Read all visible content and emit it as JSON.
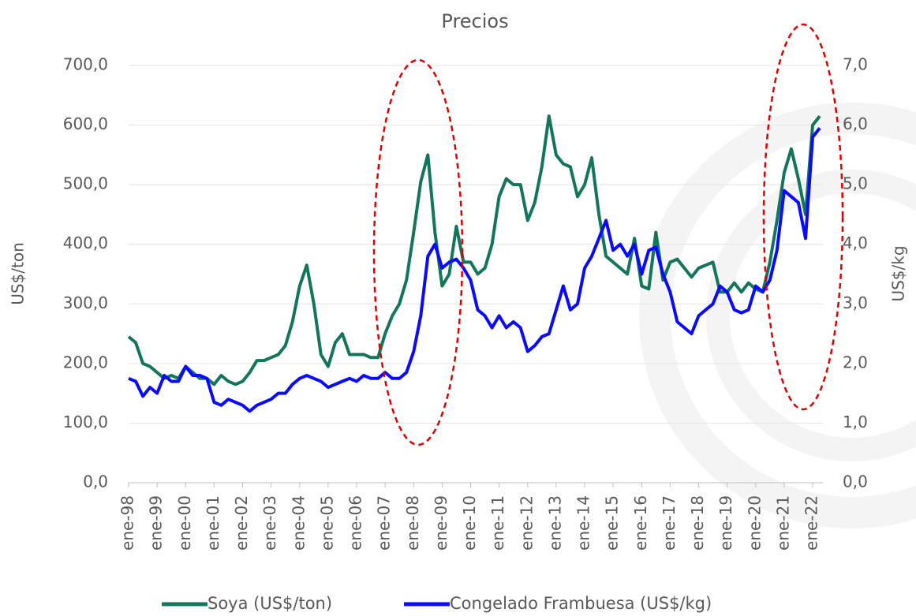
{
  "chart_data": {
    "type": "line",
    "title": "Precios",
    "y_label": "US$/ton",
    "y2_label": "US$/kg",
    "categories": [
      "ene-98",
      null,
      null,
      null,
      "ene-99",
      null,
      null,
      null,
      "ene-00",
      null,
      null,
      null,
      "ene-01",
      null,
      null,
      null,
      "ene-02",
      null,
      null,
      null,
      "ene-03",
      null,
      null,
      null,
      "ene-04",
      null,
      null,
      null,
      "ene-05",
      null,
      null,
      null,
      "ene-06",
      null,
      null,
      null,
      "ene-07",
      null,
      null,
      null,
      "ene-08",
      null,
      null,
      null,
      "ene-09",
      null,
      null,
      null,
      "ene-10",
      null,
      null,
      null,
      "ene-11",
      null,
      null,
      null,
      "ene-12",
      null,
      null,
      null,
      "ene-13",
      null,
      null,
      null,
      "ene-14",
      null,
      null,
      null,
      "ene-15",
      null,
      null,
      null,
      "ene-16",
      null,
      null,
      null,
      "ene-17",
      null,
      null,
      null,
      "ene-18",
      null,
      null,
      null,
      "ene-19",
      null,
      null,
      null,
      "ene-20",
      null,
      null,
      null,
      "ene-21",
      null,
      null,
      null,
      "ene-22",
      null
    ],
    "series": [
      {
        "name": "Soya (US$/ton)",
        "color": "#13765b",
        "axis": "y",
        "values": [
          245,
          235,
          200,
          195,
          185,
          175,
          180,
          175,
          195,
          185,
          175,
          175,
          165,
          180,
          170,
          165,
          170,
          185,
          205,
          205,
          210,
          215,
          230,
          270,
          330,
          365,
          300,
          215,
          195,
          235,
          250,
          215,
          215,
          215,
          210,
          210,
          250,
          280,
          300,
          340,
          420,
          505,
          550,
          420,
          330,
          350,
          430,
          370,
          370,
          350,
          360,
          400,
          480,
          510,
          500,
          500,
          440,
          470,
          530,
          615,
          550,
          535,
          530,
          480,
          500,
          545,
          450,
          380,
          370,
          360,
          350,
          410,
          330,
          325,
          420,
          340,
          370,
          375,
          360,
          345,
          360,
          365,
          370,
          320,
          320,
          335,
          320,
          335,
          325,
          320,
          370,
          440,
          520,
          560,
          510,
          450,
          600,
          615
        ]
      },
      {
        "name": "Congelado Frambuesa (US$/kg)",
        "color": "#0a0aff",
        "axis": "y2",
        "values": [
          1.75,
          1.7,
          1.45,
          1.6,
          1.5,
          1.8,
          1.7,
          1.7,
          1.95,
          1.8,
          1.8,
          1.75,
          1.35,
          1.3,
          1.4,
          1.35,
          1.3,
          1.2,
          1.3,
          1.35,
          1.4,
          1.5,
          1.5,
          1.65,
          1.75,
          1.8,
          1.75,
          1.7,
          1.6,
          1.65,
          1.7,
          1.75,
          1.7,
          1.8,
          1.75,
          1.75,
          1.85,
          1.75,
          1.75,
          1.85,
          2.2,
          2.8,
          3.8,
          4.0,
          3.6,
          3.7,
          3.75,
          3.6,
          3.4,
          2.9,
          2.8,
          2.6,
          2.8,
          2.6,
          2.7,
          2.6,
          2.2,
          2.3,
          2.45,
          2.5,
          2.9,
          3.3,
          2.9,
          3.0,
          3.6,
          3.8,
          4.1,
          4.4,
          3.9,
          4.0,
          3.8,
          4.0,
          3.5,
          3.9,
          3.95,
          3.5,
          3.2,
          2.7,
          2.6,
          2.5,
          2.8,
          2.9,
          3.0,
          3.3,
          3.2,
          2.9,
          2.85,
          2.9,
          3.3,
          3.2,
          3.4,
          3.9,
          4.9,
          4.8,
          4.7,
          4.1,
          5.8,
          5.95
        ]
      }
    ],
    "ylim": [
      0,
      700
    ],
    "yticks": [
      {
        "value": 0,
        "label": "0,0"
      },
      {
        "value": 100,
        "label": "100,0"
      },
      {
        "value": 200,
        "label": "200,0"
      },
      {
        "value": 300,
        "label": "300,0"
      },
      {
        "value": 400,
        "label": "400,0"
      },
      {
        "value": 500,
        "label": "500,0"
      },
      {
        "value": 600,
        "label": "600,0"
      },
      {
        "value": 700,
        "label": "700,0"
      }
    ],
    "y2lim": [
      0,
      7
    ],
    "y2ticks": [
      {
        "value": 0,
        "label": "0,0"
      },
      {
        "value": 1,
        "label": "1,0"
      },
      {
        "value": 2,
        "label": "2,0"
      },
      {
        "value": 3,
        "label": "3,0"
      },
      {
        "value": 4,
        "label": "4,0"
      },
      {
        "value": 5,
        "label": "5,0"
      },
      {
        "value": 6,
        "label": "6,0"
      },
      {
        "value": 7,
        "label": "7,0"
      }
    ],
    "grid": true,
    "legend": "bottom"
  }
}
